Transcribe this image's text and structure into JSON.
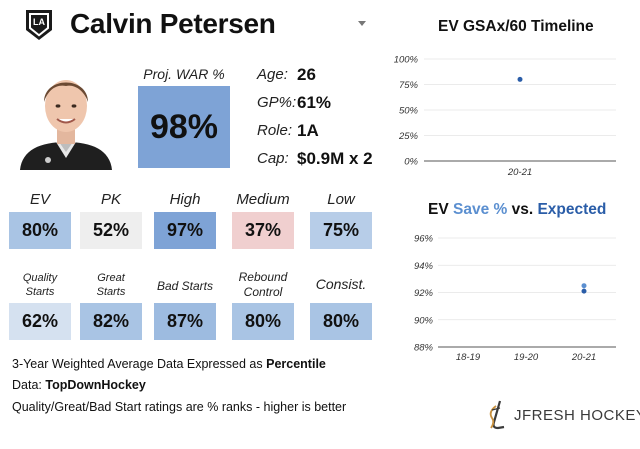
{
  "header": {
    "player_name": "Calvin Petersen",
    "team_logo_text": "LA"
  },
  "war": {
    "label": "Proj. WAR %",
    "value": "98%",
    "color": "#7ea3d6"
  },
  "info": [
    {
      "label": "Age:",
      "value": "26"
    },
    {
      "label": "GP%:",
      "value": "61%"
    },
    {
      "label": "Role:",
      "value": "1A"
    },
    {
      "label": "Cap:",
      "value": "$0.9M x 2"
    }
  ],
  "tiles_row1": [
    {
      "label": "EV",
      "value": "80%",
      "color": "#a9c4e4"
    },
    {
      "label": "PK",
      "value": "52%",
      "color": "#eeeeee"
    },
    {
      "label": "High",
      "value": "97%",
      "color": "#7ea3d6"
    },
    {
      "label": "Medium",
      "value": "37%",
      "color": "#f0cfcf"
    },
    {
      "label": "Low",
      "value": "75%",
      "color": "#b7cde8"
    }
  ],
  "tiles_row2": [
    {
      "label_line1": "Quality",
      "label_line2": "Starts",
      "value": "62%",
      "color": "#d5e1f0"
    },
    {
      "label_line1": "Great",
      "label_line2": "Starts",
      "value": "82%",
      "color": "#a9c4e4"
    },
    {
      "label": "Bad Starts",
      "value": "87%",
      "color": "#9dbbe0"
    },
    {
      "label_line1": "Rebound",
      "label_line2": "Control",
      "value": "80%",
      "color": "#a9c4e4"
    },
    {
      "label": "Consist.",
      "value": "80%",
      "color": "#a9c4e4"
    }
  ],
  "footer": {
    "line1_prefix": "3-Year Weighted Average Data Expressed as ",
    "line1_bold": "Percentile",
    "line2_prefix": "Data: ",
    "line2_bold": "TopDownHockey",
    "line3": "Quality/Great/Bad Start ratings are % ranks - higher is better"
  },
  "brand": {
    "text": "JFRESH HOCKEY"
  },
  "chart1_title": "EV GSAx/60 Timeline",
  "chart2_title": {
    "part1": "EV ",
    "save": "Save %",
    "mid": " vs. ",
    "expected": "Expected"
  },
  "chart_data": [
    {
      "type": "scatter",
      "title": "EV GSAx/60 Timeline",
      "categories": [
        "20-21"
      ],
      "series": [
        {
          "values": [
            0.8
          ]
        }
      ],
      "yticks": [
        "100%",
        "75%",
        "50%",
        "25%",
        "0%"
      ],
      "ylim": [
        0,
        1
      ],
      "grid": true,
      "point_color": "#2a5da8"
    },
    {
      "type": "scatter",
      "title": "EV Save % vs. Expected",
      "categories": [
        "18-19",
        "19-20",
        "20-21"
      ],
      "series": [
        {
          "name": "Save %",
          "values": [
            null,
            null,
            92.5
          ],
          "color": "#5b8fd0"
        },
        {
          "name": "Expected",
          "values": [
            null,
            null,
            92.1
          ],
          "color": "#2a5da8"
        }
      ],
      "yticks": [
        "96%",
        "94%",
        "92%",
        "90%",
        "88%"
      ],
      "ylim": [
        88,
        96
      ],
      "grid": true
    }
  ]
}
